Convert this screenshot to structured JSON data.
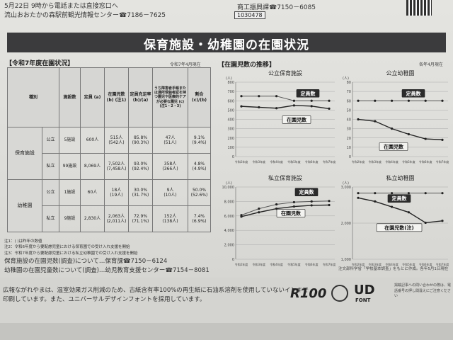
{
  "top": {
    "line1": "5月22日 9時から電話または直接窓口へ",
    "line2": "流山おおたかの森駅前観光情報センター☎7186－7625",
    "right1": "商工振興課☎7150－6085",
    "id_box": "1030478"
  },
  "title": "保育施設・幼稚園の在園状況",
  "table_section": {
    "heading": "【令和7年度在園状況】",
    "as_of": "令和7年4月現在",
    "headers": {
      "kind": "種別",
      "facilities": "施設数",
      "capacity": "定員 (a)",
      "enrolled": "在園児数 (b) (注1)",
      "fill_rate": "定員充足率 (b)/(a)",
      "special_count": "うち障害者手帳または通所受給者証を持つ園児や医療的ケアが必要な園児 (c) (注1・2・3)",
      "ratio": "割合 (c)/(b)"
    },
    "groups": [
      {
        "name": "保育施設",
        "rows": [
          {
            "type": "公立",
            "facilities": "5施設",
            "capacity": "600人",
            "enrolled": "515人",
            "enrolled_prev": "(542人)",
            "rate": "85.8%",
            "rate_prev": "(90.3%)",
            "special": "47人",
            "special_prev": "(51人)",
            "ratio": "9.1%",
            "ratio_prev": "(9.4%)"
          },
          {
            "type": "私立",
            "facilities": "99施設",
            "capacity": "8,069人",
            "enrolled": "7,502人",
            "enrolled_prev": "(7,458人)",
            "rate": "93.0%",
            "rate_prev": "(92.4%)",
            "special": "358人",
            "special_prev": "(366人)",
            "ratio": "4.8%",
            "ratio_prev": "(4.9%)"
          }
        ]
      },
      {
        "name": "幼稚園",
        "rows": [
          {
            "type": "公立",
            "facilities": "1施設",
            "capacity": "60人",
            "enrolled": "18人",
            "enrolled_prev": "(19人)",
            "rate": "30.0%",
            "rate_prev": "(31.7%)",
            "special": "9人",
            "special_prev": "(10人)",
            "ratio": "50.0%",
            "ratio_prev": "(52.6%)"
          },
          {
            "type": "私立",
            "facilities": "9施設",
            "capacity": "2,830人",
            "enrolled": "2,063人",
            "enrolled_prev": "(2,011人)",
            "rate": "72.9%",
            "rate_prev": "(71.1%)",
            "special": "152人",
            "special_prev": "(138人)",
            "ratio": "7.4%",
            "ratio_prev": "(6.9%)"
          }
        ]
      }
    ],
    "notes": [
      "注1：( )は昨年の数値",
      "注2：令和6年度から要配慮児童における保育園での受け入れ支援を開始",
      "注3：令和7年度から要配慮児童における私立幼稚園での受け入れ支援を開始"
    ]
  },
  "contacts": {
    "line1": "保育施設の在園児数(調査)について…保育課☎7150－6124",
    "line2": "幼稚園の在園児童数について(調査)…幼児教育支援センター☎7154－8081"
  },
  "charts_section": {
    "heading": "【在園児数の推移】",
    "as_of": "各年4月現在",
    "source": "注文部科学省「学校基本調査」をもとに作成。各年5月1日現在"
  },
  "chart_data": [
    {
      "type": "line",
      "title": "公立保育施設",
      "unit": "(人)",
      "x": [
        "令和2年度",
        "令和3年度",
        "令和4年度",
        "令和5年度",
        "令和6年度",
        "令和7年度"
      ],
      "ylim": [
        0,
        800
      ],
      "yticks": [
        "0",
        "100",
        "200",
        "300",
        "400",
        "500",
        "600",
        "700",
        "800"
      ],
      "series": [
        {
          "name": "定員数",
          "values": [
            650,
            650,
            650,
            600,
            600,
            600
          ]
        },
        {
          "name": "在園児数",
          "values": [
            540,
            530,
            520,
            550,
            542,
            515
          ]
        }
      ]
    },
    {
      "type": "line",
      "title": "公立幼稚園",
      "unit": "(人)",
      "x": [
        "令和2年度",
        "令和3年度",
        "令和4年度",
        "令和5年度",
        "令和6年度",
        "令和7年度"
      ],
      "ylim": [
        0,
        80
      ],
      "yticks": [
        "0",
        "10",
        "20",
        "30",
        "40",
        "50",
        "60",
        "70",
        "80"
      ],
      "series": [
        {
          "name": "定員数",
          "values": [
            60,
            60,
            60,
            60,
            60,
            60
          ]
        },
        {
          "name": "在園児数",
          "values": [
            40,
            38,
            30,
            24,
            19,
            18
          ]
        }
      ]
    },
    {
      "type": "line",
      "title": "私立保育施設",
      "unit": "(人)",
      "x": [
        "令和2年度",
        "令和3年度",
        "令和4年度",
        "令和5年度",
        "令和6年度",
        "令和7年度"
      ],
      "ylim": [
        0,
        10000
      ],
      "yticks": [
        "0",
        "2,000",
        "4,000",
        "6,000",
        "8,000",
        "10,000"
      ],
      "series": [
        {
          "name": "定員数",
          "values": [
            6100,
            7000,
            7600,
            7900,
            8000,
            8069
          ]
        },
        {
          "name": "在園児数",
          "values": [
            5900,
            6500,
            7000,
            7300,
            7458,
            7502
          ]
        }
      ]
    },
    {
      "type": "line",
      "title": "私立幼稚園",
      "unit": "(人)",
      "x": [
        "令和2年度",
        "令和3年度",
        "令和4年度",
        "令和5年度",
        "令和6年度",
        "令和7年度"
      ],
      "ylim": [
        1000,
        3000
      ],
      "yticks": [
        "1,000",
        "2,000",
        "3,000"
      ],
      "series": [
        {
          "name": "定員数",
          "values": [
            2830,
            2830,
            2830,
            2830,
            2830,
            2830
          ]
        },
        {
          "name": "在園児数(注)",
          "values": [
            2700,
            2600,
            2450,
            2300,
            2011,
            2063
          ]
        }
      ]
    }
  ],
  "footer": {
    "text1": "広報ながれやまは、温室効果ガス削減のため、古紙含有率100%の再生紙に石油系溶剤を使用していないインキで",
    "text2": "印刷しています。また、ユニバーサルデザインフォントを採用しています。",
    "logo_r100": "R100",
    "logo_ud": "UD",
    "logo_ud_sub": "FONT",
    "small": "掲載記事への問い合わせの際は、電話番号の押し間違えにご注意ください"
  },
  "colors": {
    "band": "#3b3b3d",
    "line": "#222222",
    "capacity_line": "#555555"
  }
}
